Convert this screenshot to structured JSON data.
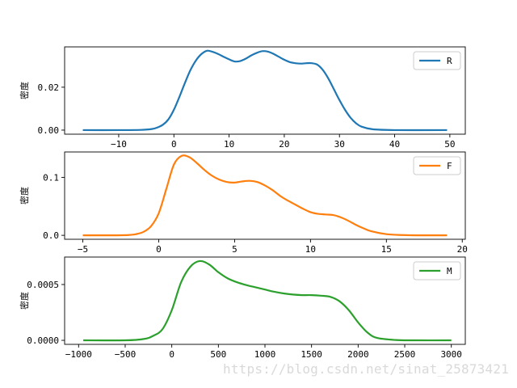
{
  "chart_data": [
    {
      "type": "line",
      "ylabel": "密度",
      "legend": {
        "label": "R",
        "placement": "top-right"
      },
      "series": [
        {
          "name": "R",
          "color": "#1f77b4",
          "x": [
            -16.5,
            -10,
            -6,
            -4,
            -3,
            -2,
            -1,
            0,
            1,
            2,
            3,
            4,
            5,
            6,
            7,
            8,
            9,
            10,
            11,
            12,
            13,
            14,
            15,
            16,
            17,
            18,
            19,
            20,
            21,
            22,
            23,
            24,
            25,
            26,
            27,
            28,
            29,
            30,
            31,
            32,
            33,
            34,
            36,
            40,
            49.5
          ],
          "values": [
            0,
            0,
            0.0001,
            0.0005,
            0.0012,
            0.0025,
            0.005,
            0.0095,
            0.0155,
            0.022,
            0.028,
            0.0325,
            0.0355,
            0.037,
            0.0365,
            0.0355,
            0.0342,
            0.033,
            0.032,
            0.0322,
            0.0333,
            0.0348,
            0.036,
            0.0368,
            0.0366,
            0.0356,
            0.0342,
            0.0328,
            0.0317,
            0.0312,
            0.031,
            0.0312,
            0.0312,
            0.0305,
            0.028,
            0.024,
            0.019,
            0.014,
            0.0095,
            0.0058,
            0.0032,
            0.0016,
            0.0004,
            0,
            0
          ]
        }
      ],
      "xlim": [
        -19.8,
        52.8
      ],
      "ylim": [
        -0.0019,
        0.0388
      ],
      "xticks": [
        -10,
        0,
        10,
        20,
        30,
        40,
        50
      ],
      "xtick_labels": [
        "−10",
        "0",
        "10",
        "20",
        "30",
        "40",
        "50"
      ],
      "yticks": [
        0,
        0.02
      ],
      "ytick_labels": [
        "0.00",
        "0.02"
      ],
      "grid": false
    },
    {
      "type": "line",
      "ylabel": "密度",
      "legend": {
        "label": "F",
        "placement": "top-right"
      },
      "series": [
        {
          "name": "F",
          "color": "#ff7f0e",
          "x": [
            -5,
            -3,
            -2,
            -1.5,
            -1,
            -0.5,
            0,
            0.5,
            1,
            1.5,
            2,
            2.5,
            3,
            3.5,
            4,
            4.5,
            5,
            5.5,
            6,
            6.5,
            7,
            7.5,
            8,
            8.5,
            9,
            9.5,
            10,
            10.5,
            11,
            11.5,
            12,
            12.5,
            13,
            13.5,
            14,
            15,
            16,
            17,
            19
          ],
          "values": [
            0,
            0,
            0.0005,
            0.002,
            0.006,
            0.016,
            0.038,
            0.08,
            0.122,
            0.137,
            0.135,
            0.125,
            0.113,
            0.103,
            0.096,
            0.092,
            0.091,
            0.093,
            0.094,
            0.092,
            0.086,
            0.078,
            0.068,
            0.06,
            0.053,
            0.046,
            0.04,
            0.037,
            0.036,
            0.035,
            0.031,
            0.025,
            0.018,
            0.012,
            0.007,
            0.002,
            0.0005,
            0,
            0
          ]
        }
      ],
      "xlim": [
        -6.2,
        20.2
      ],
      "ylim": [
        -0.0068,
        0.1438
      ],
      "xticks": [
        -5,
        0,
        5,
        10,
        15,
        20
      ],
      "xtick_labels": [
        "−5",
        "0",
        "5",
        "10",
        "15",
        "20"
      ],
      "yticks": [
        0,
        0.1
      ],
      "ytick_labels": [
        "0.0",
        "0.1"
      ],
      "grid": false
    },
    {
      "type": "line",
      "ylabel": "密度",
      "legend": {
        "label": "M",
        "placement": "top-right"
      },
      "series": [
        {
          "name": "M",
          "color": "#2ca02c",
          "x": [
            -950,
            -500,
            -300,
            -200,
            -100,
            0,
            100,
            200,
            300,
            400,
            500,
            600,
            700,
            800,
            900,
            1000,
            1100,
            1200,
            1300,
            1400,
            1500,
            1600,
            1700,
            1800,
            1900,
            2000,
            2100,
            2200,
            2400,
            2600,
            3000
          ],
          "values": [
            0,
            0,
            1.2e-05,
            4e-05,
            0.0001,
            0.00027,
            0.00052,
            0.00066,
            0.00071,
            0.00068,
            0.00061,
            0.000555,
            0.00052,
            0.000495,
            0.000475,
            0.000455,
            0.000435,
            0.00042,
            0.00041,
            0.000405,
            0.000405,
            0.0004,
            0.00039,
            0.00035,
            0.00027,
            0.00016,
            7e-05,
            2.2e-05,
            3e-06,
            0,
            0
          ]
        }
      ],
      "xlim": [
        -1150,
        3150
      ],
      "ylim": [
        -3.6e-05,
        0.000746
      ],
      "xticks": [
        -1000,
        -500,
        0,
        500,
        1000,
        1500,
        2000,
        2500,
        3000
      ],
      "xtick_labels": [
        "−1000",
        "−500",
        "0",
        "500",
        "1000",
        "1500",
        "2000",
        "2500",
        "3000"
      ],
      "yticks": [
        0,
        0.0005
      ],
      "ytick_labels": [
        "0.0000",
        "0.0005"
      ],
      "grid": false
    }
  ],
  "watermark": "https://blog.csdn.net/sinat_25873421"
}
